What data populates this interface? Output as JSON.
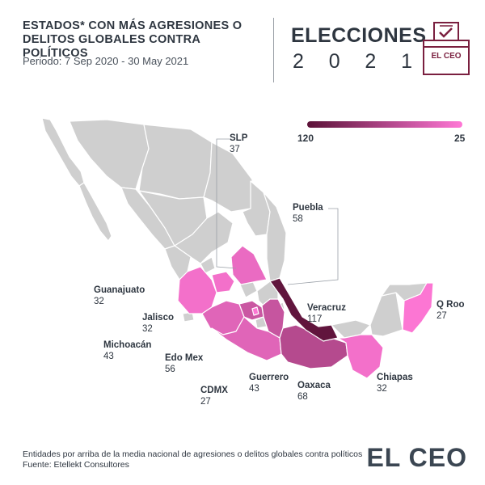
{
  "header": {
    "title_line1": "ESTADOS* CON MÁS AGRESIONES O",
    "title_line2": "DELITOS GLOBALES CONTRA POLÍTICOS",
    "period": "Periodo: 7 Sep 2020 - 30 May 2021"
  },
  "badge": {
    "title": "ELECCIONES",
    "year": [
      "2",
      "0",
      "2",
      "1"
    ],
    "ballot_label": "EL CEO"
  },
  "legend": {
    "max_label": "120",
    "min_label": "25",
    "color_max": "#5c1238",
    "color_min": "#ff78d6"
  },
  "map": {
    "base_color": "#cfcfcf",
    "states": [
      {
        "id": "slp",
        "name": "SLP",
        "value": "37"
      },
      {
        "id": "puebla",
        "name": "Puebla",
        "value": "58"
      },
      {
        "id": "guanajuato",
        "name": "Guanajuato",
        "value": "32"
      },
      {
        "id": "jalisco",
        "name": "Jalisco",
        "value": "32"
      },
      {
        "id": "michoacan",
        "name": "Michoacán",
        "value": "43"
      },
      {
        "id": "edomex",
        "name": "Edo Mex",
        "value": "56"
      },
      {
        "id": "cdmx",
        "name": "CDMX",
        "value": "27"
      },
      {
        "id": "guerrero",
        "name": "Guerrero",
        "value": "43"
      },
      {
        "id": "oaxaca",
        "name": "Oaxaca",
        "value": "68"
      },
      {
        "id": "veracruz",
        "name": "Veracruz",
        "value": "117"
      },
      {
        "id": "qroo",
        "name": "Q Roo",
        "value": "27"
      },
      {
        "id": "chiapas",
        "name": "Chiapas",
        "value": "32"
      }
    ]
  },
  "footer": {
    "note": "Entidades por arriba de la media nacional de agresiones o delitos globales contra políticos",
    "source": "Fuente: Etellekt Consultores",
    "brand": "EL CEO"
  }
}
